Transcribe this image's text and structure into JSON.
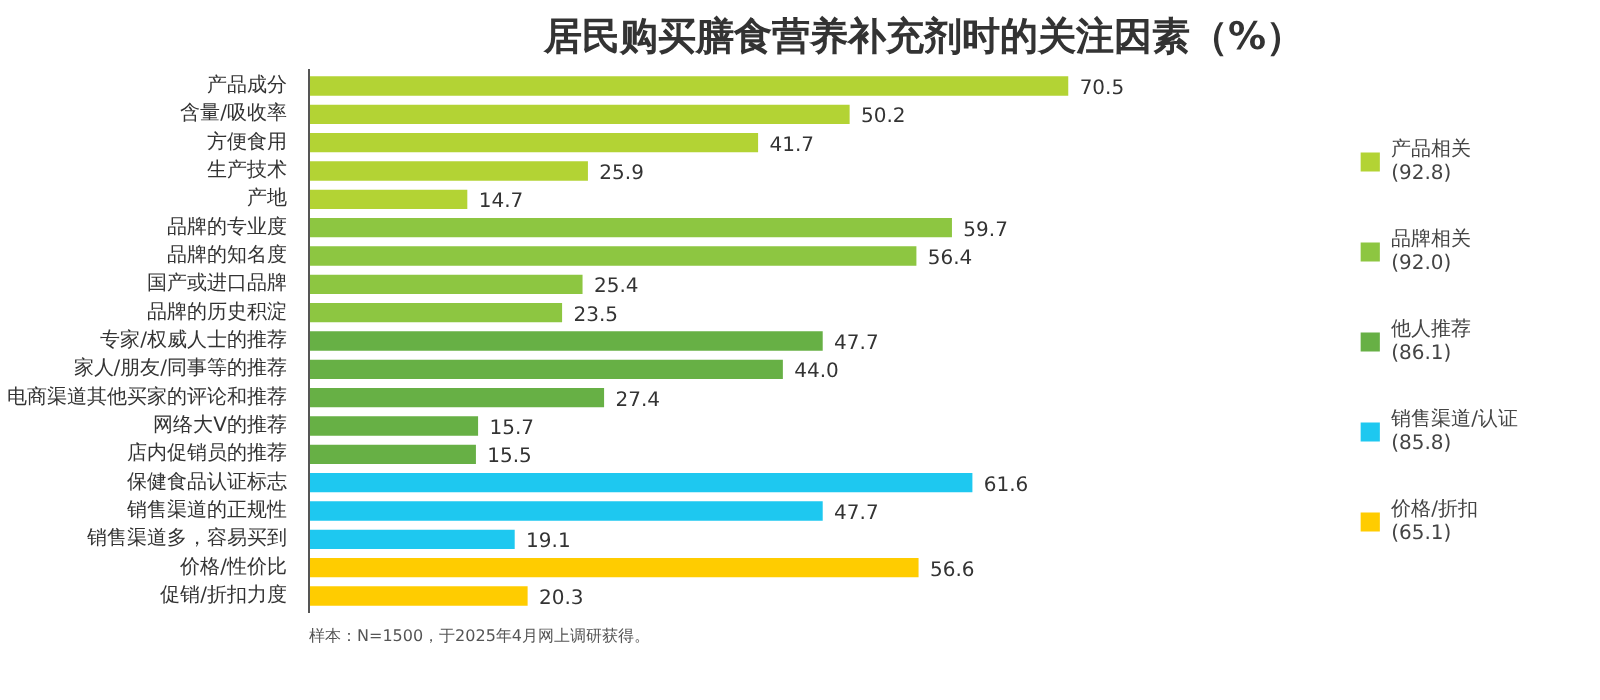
{
  "chart_data": {
    "type": "bar",
    "orientation": "horizontal",
    "title": "居民购买膳食营养补充剂时的关注因素（%）",
    "categories": [
      "产品成分",
      "含量/吸收率",
      "方便食用",
      "生产技术",
      "产地",
      "品牌的专业度",
      "品牌的知名度",
      "国产或进口品牌",
      "品牌的历史积淀",
      "专家/权威人士的推荐",
      "家人/朋友/同事等的推荐",
      "电商渠道其他买家的评论和推荐",
      "网络大V的推荐",
      "店内促销员的推荐",
      "保健食品认证标志",
      "销售渠道的正规性",
      "销售渠道多，容易买到",
      "价格/性价比",
      "促销/折扣力度"
    ],
    "series": [
      {
        "name": "产品相关\n(92.8)",
        "color": "#b3d334",
        "values": [
          70.5,
          50.2,
          41.7,
          25.9,
          14.7,
          null,
          null,
          null,
          null,
          null,
          null,
          null,
          null,
          null,
          null,
          null,
          null,
          null,
          null
        ]
      },
      {
        "name": "品牌相关\n(92.0)",
        "color": "#8dc641",
        "values": [
          null,
          null,
          null,
          null,
          null,
          59.7,
          56.4,
          25.4,
          23.5,
          null,
          null,
          null,
          null,
          null,
          null,
          null,
          null,
          null,
          null
        ]
      },
      {
        "name": "他人推荐\n(86.1)",
        "color": "#67b045",
        "values": [
          null,
          null,
          null,
          null,
          null,
          null,
          null,
          null,
          null,
          47.7,
          44.0,
          27.4,
          15.7,
          15.5,
          null,
          null,
          null,
          null,
          null
        ],
        "value_labels": [
          null,
          null,
          null,
          null,
          null,
          null,
          null,
          null,
          null,
          "47.7",
          "44.0",
          "27.4",
          "15.7",
          "15.5",
          null,
          null,
          null,
          null,
          null
        ]
      },
      {
        "name": "销售渠道/认证\n(85.8)",
        "color": "#1ec8f0",
        "values": [
          null,
          null,
          null,
          null,
          null,
          null,
          null,
          null,
          null,
          null,
          null,
          null,
          null,
          null,
          61.6,
          47.7,
          19.1,
          null,
          null
        ]
      },
      {
        "name": "价格/折扣\n(65.1)",
        "color": "#ffcc00",
        "values": [
          null,
          null,
          null,
          null,
          null,
          null,
          null,
          null,
          null,
          null,
          null,
          null,
          null,
          null,
          null,
          null,
          null,
          56.6,
          20.3
        ]
      }
    ],
    "data_labels": true,
    "legend": "right",
    "grid": false,
    "tick_labels": "y",
    "annotations": [
      "样本：N=1500，于2025年4月网上调研获得。"
    ]
  }
}
